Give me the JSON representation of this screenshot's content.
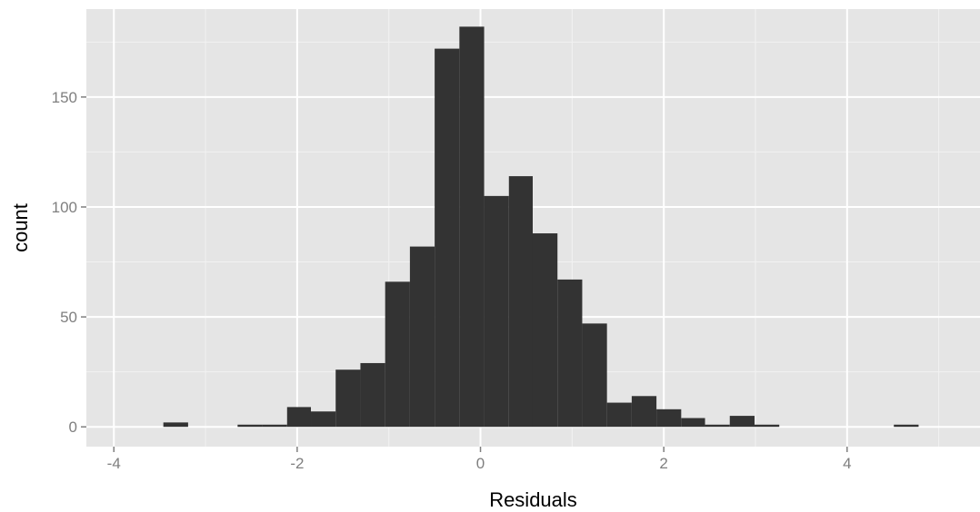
{
  "chart_data": {
    "type": "bar",
    "subtype": "histogram",
    "xlabel": "Residuals",
    "ylabel": "count",
    "xlim": [
      -4.3,
      5.45
    ],
    "ylim": [
      -9,
      190
    ],
    "x_ticks": [
      -4,
      -2,
      0,
      2,
      4
    ],
    "y_ticks": [
      0,
      50,
      100,
      150
    ],
    "x_tick_labels": [
      "-4",
      "-2",
      "0",
      "2",
      "4"
    ],
    "y_tick_labels": [
      "0",
      "50",
      "100",
      "150"
    ],
    "grid": true,
    "bin_width": 0.269,
    "bins": [
      {
        "x0": -3.46,
        "x1": -3.19,
        "count": 2
      },
      {
        "x0": -2.65,
        "x1": -2.38,
        "count": 1
      },
      {
        "x0": -2.38,
        "x1": -2.11,
        "count": 1
      },
      {
        "x0": -2.11,
        "x1": -1.85,
        "count": 9
      },
      {
        "x0": -1.85,
        "x1": -1.58,
        "count": 7
      },
      {
        "x0": -1.58,
        "x1": -1.31,
        "count": 26
      },
      {
        "x0": -1.31,
        "x1": -1.04,
        "count": 29
      },
      {
        "x0": -1.04,
        "x1": -0.77,
        "count": 66
      },
      {
        "x0": -0.77,
        "x1": -0.5,
        "count": 82
      },
      {
        "x0": -0.5,
        "x1": -0.23,
        "count": 172
      },
      {
        "x0": -0.23,
        "x1": 0.04,
        "count": 182
      },
      {
        "x0": 0.04,
        "x1": 0.31,
        "count": 105
      },
      {
        "x0": 0.31,
        "x1": 0.57,
        "count": 114
      },
      {
        "x0": 0.57,
        "x1": 0.84,
        "count": 88
      },
      {
        "x0": 0.84,
        "x1": 1.11,
        "count": 67
      },
      {
        "x0": 1.11,
        "x1": 1.38,
        "count": 47
      },
      {
        "x0": 1.38,
        "x1": 1.65,
        "count": 11
      },
      {
        "x0": 1.65,
        "x1": 1.92,
        "count": 14
      },
      {
        "x0": 1.92,
        "x1": 2.19,
        "count": 8
      },
      {
        "x0": 2.19,
        "x1": 2.45,
        "count": 4
      },
      {
        "x0": 2.45,
        "x1": 2.72,
        "count": 1
      },
      {
        "x0": 2.72,
        "x1": 2.99,
        "count": 5
      },
      {
        "x0": 2.99,
        "x1": 3.26,
        "count": 1
      },
      {
        "x0": 4.51,
        "x1": 4.78,
        "count": 1
      }
    ],
    "colors": {
      "panel_background": "#e5e5e5",
      "grid_major": "#ffffff",
      "grid_minor": "#f2f2f2",
      "bar_fill": "#333333",
      "tick_text": "#7f7f7f",
      "axis_title_text": "#000000"
    }
  }
}
